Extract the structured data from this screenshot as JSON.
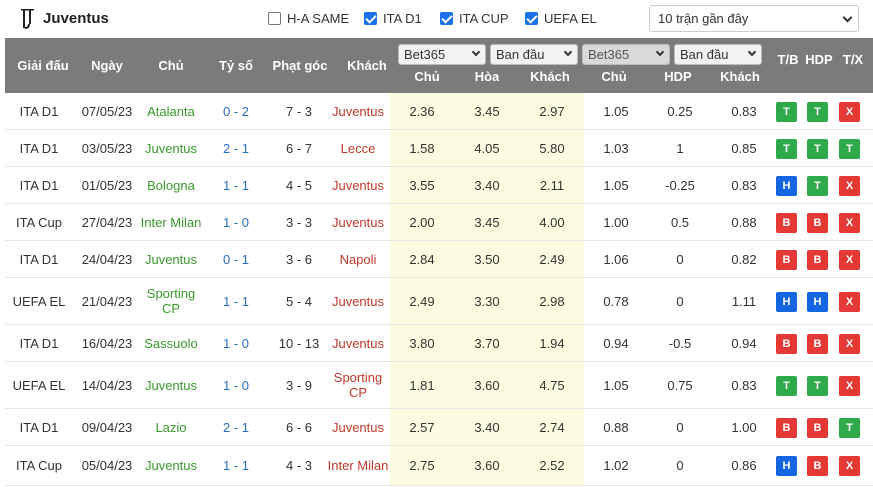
{
  "team": "Juventus",
  "filters": [
    {
      "label": "H-A SAME",
      "checked": false
    },
    {
      "label": "ITA D1",
      "checked": true
    },
    {
      "label": "ITA CUP",
      "checked": true
    },
    {
      "label": "UEFA EL",
      "checked": true
    }
  ],
  "recent_select": "10 trận gần đây",
  "header": {
    "league": "Giải đấu",
    "date": "Ngày",
    "home": "Chủ",
    "score": "Tỷ số",
    "corner": "Phạt góc",
    "away": "Khách",
    "bookmaker1": "Bet365",
    "type1": "Ban đầu",
    "bookmaker2": "Bet365",
    "type2": "Ban đầu",
    "odds_home": "Chủ",
    "odds_draw": "Hòa",
    "odds_away": "Khách",
    "ah_home": "Chủ",
    "ah_line": "HDP",
    "ah_away": "Khách",
    "tb": "T/B",
    "hdp": "HDP",
    "tx": "T/X"
  },
  "colors": {
    "home_win": "#3a9a2e",
    "juventus": "#c0392b",
    "score": "#2b6cc4",
    "header_bg": "#7b7b7b",
    "odds_bg": "#fdfce0"
  },
  "rows": [
    {
      "league": "ITA D1",
      "date": "07/05/23",
      "home": "Atalanta",
      "home_juve": false,
      "score": "0 - 2",
      "corner": "7 - 3",
      "away": "Juventus",
      "away_juve": true,
      "o1": "2.36",
      "ox": "3.45",
      "o2": "2.97",
      "ah1": "1.05",
      "ahl": "0.25",
      "ah2": "0.83",
      "tb": "T",
      "hdp": "T",
      "tx": "X"
    },
    {
      "league": "ITA D1",
      "date": "03/05/23",
      "home": "Juventus",
      "home_juve": true,
      "score": "2 - 1",
      "corner": "6 - 7",
      "away": "Lecce",
      "away_juve": false,
      "o1": "1.58",
      "ox": "4.05",
      "o2": "5.80",
      "ah1": "1.03",
      "ahl": "1",
      "ah2": "0.85",
      "tb": "T",
      "hdp": "T",
      "tx": "T"
    },
    {
      "league": "ITA D1",
      "date": "01/05/23",
      "home": "Bologna",
      "home_juve": false,
      "score": "1 - 1",
      "corner": "4 - 5",
      "away": "Juventus",
      "away_juve": true,
      "o1": "3.55",
      "ox": "3.40",
      "o2": "2.11",
      "ah1": "1.05",
      "ahl": "-0.25",
      "ah2": "0.83",
      "tb": "H",
      "hdp": "T",
      "tx": "X"
    },
    {
      "league": "ITA Cup",
      "date": "27/04/23",
      "home": "Inter Milan",
      "home_juve": false,
      "score": "1 - 0",
      "corner": "3 - 3",
      "away": "Juventus",
      "away_juve": true,
      "o1": "2.00",
      "ox": "3.45",
      "o2": "4.00",
      "ah1": "1.00",
      "ahl": "0.5",
      "ah2": "0.88",
      "tb": "B",
      "hdp": "B",
      "tx": "X"
    },
    {
      "league": "ITA D1",
      "date": "24/04/23",
      "home": "Juventus",
      "home_juve": true,
      "score": "0 - 1",
      "corner": "3 - 6",
      "away": "Napoli",
      "away_juve": false,
      "o1": "2.84",
      "ox": "3.50",
      "o2": "2.49",
      "ah1": "1.06",
      "ahl": "0",
      "ah2": "0.82",
      "tb": "B",
      "hdp": "B",
      "tx": "X"
    },
    {
      "league": "UEFA EL",
      "date": "21/04/23",
      "home": "Sporting CP",
      "home_juve": false,
      "score": "1 - 1",
      "corner": "5 - 4",
      "away": "Juventus",
      "away_juve": true,
      "o1": "2.49",
      "ox": "3.30",
      "o2": "2.98",
      "ah1": "0.78",
      "ahl": "0",
      "ah2": "1.11",
      "tb": "H",
      "hdp": "H",
      "tx": "X"
    },
    {
      "league": "ITA D1",
      "date": "16/04/23",
      "home": "Sassuolo",
      "home_juve": false,
      "score": "1 - 0",
      "corner": "10 - 13",
      "away": "Juventus",
      "away_juve": true,
      "o1": "3.80",
      "ox": "3.70",
      "o2": "1.94",
      "ah1": "0.94",
      "ahl": "-0.5",
      "ah2": "0.94",
      "tb": "B",
      "hdp": "B",
      "tx": "X"
    },
    {
      "league": "UEFA EL",
      "date": "14/04/23",
      "home": "Juventus",
      "home_juve": true,
      "score": "1 - 0",
      "corner": "3 - 9",
      "away": "Sporting CP",
      "away_juve": false,
      "o1": "1.81",
      "ox": "3.60",
      "o2": "4.75",
      "ah1": "1.05",
      "ahl": "0.75",
      "ah2": "0.83",
      "tb": "T",
      "hdp": "T",
      "tx": "X"
    },
    {
      "league": "ITA D1",
      "date": "09/04/23",
      "home": "Lazio",
      "home_juve": false,
      "score": "2 - 1",
      "corner": "6 - 6",
      "away": "Juventus",
      "away_juve": true,
      "o1": "2.57",
      "ox": "3.40",
      "o2": "2.74",
      "ah1": "0.88",
      "ahl": "0",
      "ah2": "1.00",
      "tb": "B",
      "hdp": "B",
      "tx": "T"
    },
    {
      "league": "ITA Cup",
      "date": "05/04/23",
      "home": "Juventus",
      "home_juve": true,
      "score": "1 - 1",
      "corner": "4 - 3",
      "away": "Inter Milan",
      "away_juve": false,
      "o1": "2.75",
      "ox": "3.60",
      "o2": "2.52",
      "ah1": "1.02",
      "ahl": "0",
      "ah2": "0.86",
      "tb": "H",
      "hdp": "B",
      "tx": "X"
    }
  ]
}
